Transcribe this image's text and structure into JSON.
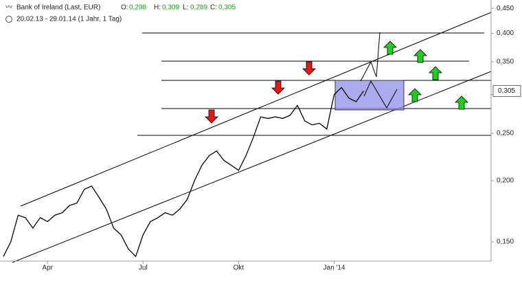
{
  "header": {
    "title": "Bank of Ireland (Last, EUR)",
    "ohlc": [
      {
        "key": "O:",
        "value": "0,298"
      },
      {
        "key": "H:",
        "value": "0,309"
      },
      {
        "key": "L:",
        "value": "0,289"
      },
      {
        "key": "C:",
        "value": "0,305"
      }
    ],
    "range": "20.02.13 - 29.01.14 (1 Jahr, 1 Tag)"
  },
  "chart_data": {
    "type": "line",
    "color": "#000000",
    "log_scale": true,
    "categories": [
      null,
      null,
      null,
      null,
      null,
      null,
      "Apr",
      null,
      null,
      null,
      null,
      null,
      null,
      null,
      null,
      null,
      null,
      null,
      null,
      "Jul",
      null,
      null,
      null,
      null,
      null,
      null,
      null,
      null,
      null,
      null,
      null,
      null,
      "Okt",
      null,
      null,
      null,
      null,
      null,
      null,
      null,
      null,
      null,
      null,
      null,
      null,
      "Jan '14",
      null,
      null,
      null,
      null
    ],
    "values": [
      0.14,
      0.15,
      0.17,
      0.168,
      0.16,
      0.168,
      0.165,
      0.17,
      0.172,
      0.178,
      0.18,
      0.192,
      0.195,
      0.185,
      0.175,
      0.16,
      0.155,
      0.145,
      0.14,
      0.155,
      0.165,
      0.168,
      0.172,
      0.17,
      0.175,
      0.183,
      0.2,
      0.215,
      0.225,
      0.23,
      0.22,
      0.215,
      0.21,
      0.225,
      0.245,
      0.27,
      0.268,
      0.27,
      0.268,
      0.272,
      0.285,
      0.265,
      0.26,
      0.262,
      0.255,
      0.3,
      0.31,
      0.295,
      0.29,
      0.305
    ],
    "last_label": "0,305",
    "ylim": [
      0.137,
      0.468
    ],
    "yticks": [
      {
        "value": 0.15,
        "label": "0,150"
      },
      {
        "value": 0.2,
        "label": "0,200"
      },
      {
        "value": 0.25,
        "label": "0,250"
      },
      {
        "value": 0.3,
        "label": "0,300"
      },
      {
        "value": 0.35,
        "label": "0,350"
      },
      {
        "value": 0.4,
        "label": "0,400"
      },
      {
        "value": 0.45,
        "label": "0,450"
      }
    ]
  }
}
